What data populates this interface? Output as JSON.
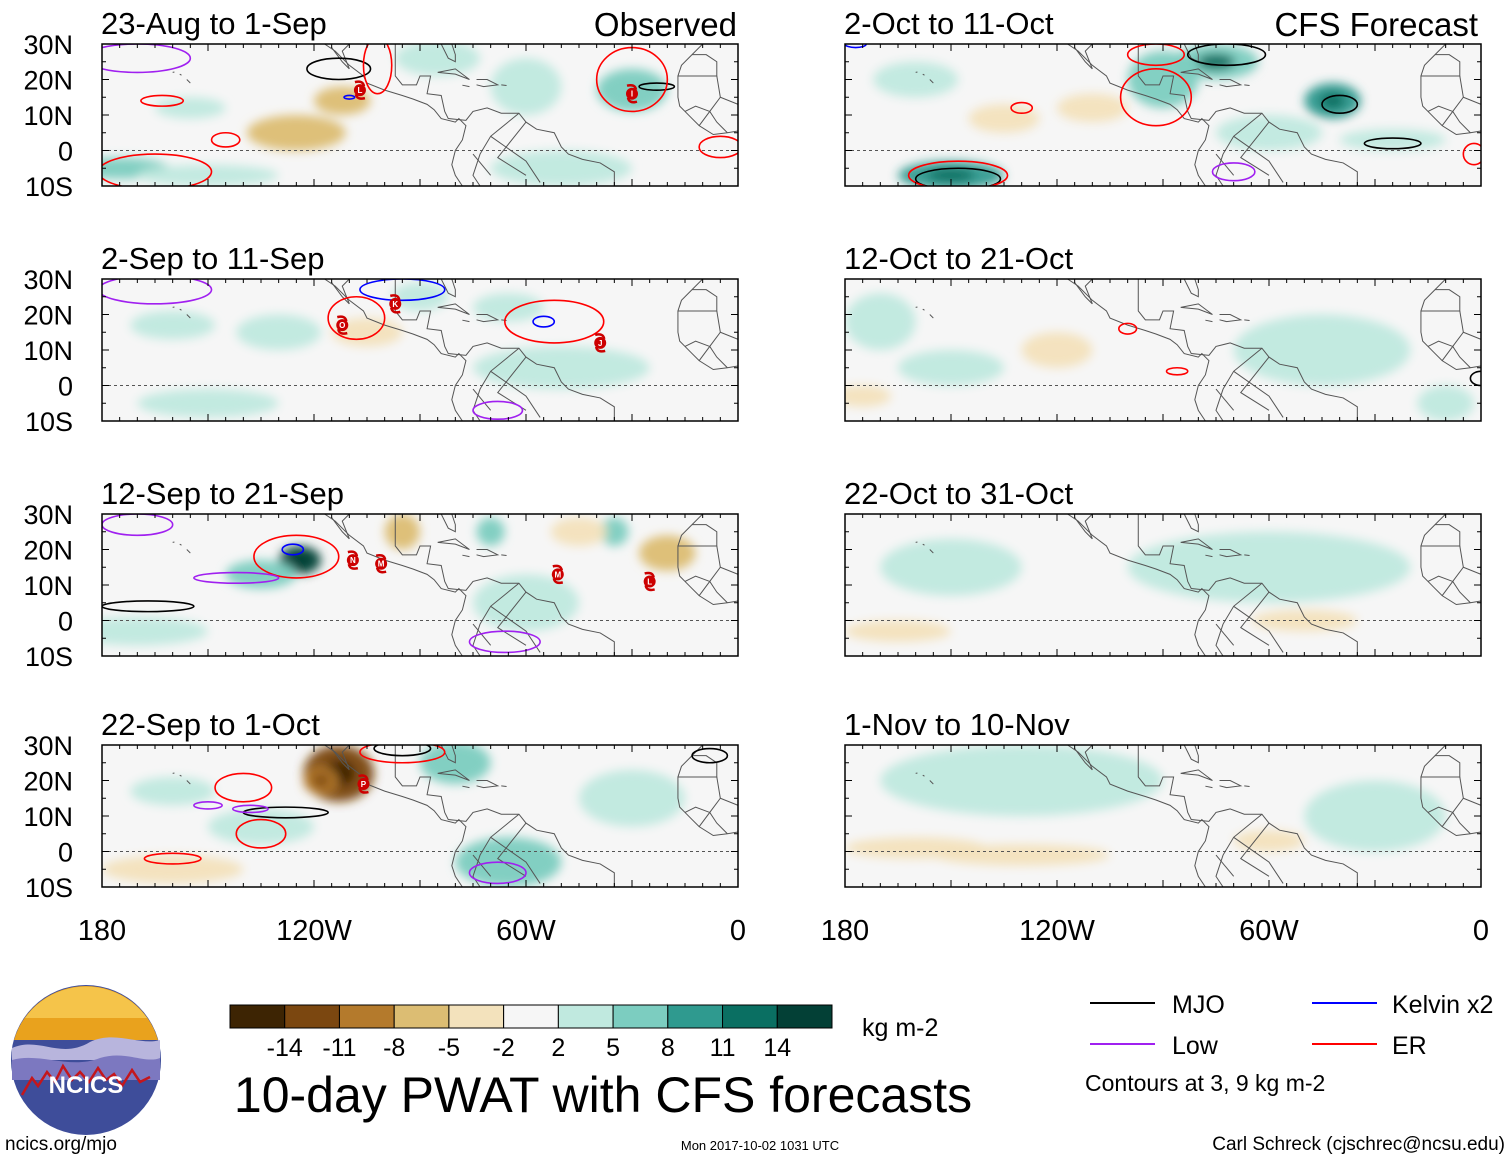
{
  "colors": {
    "mjo": "#000000",
    "kelvin": "#0000ff",
    "low": "#a020f0",
    "er": "#ff0000",
    "equator": "#555555",
    "land_line": "#555555",
    "palette": [
      "#3d2403",
      "#7b4710",
      "#b47a2c",
      "#dcbd73",
      "#f3e2bc",
      "#f6f6f6",
      "#c0e9df",
      "#7ccdc0",
      "#2f9a8f",
      "#0a6f62",
      "#034036"
    ]
  },
  "header": {
    "observed_label": "Observed",
    "forecast_label": "CFS Forecast"
  },
  "axes": {
    "lat_ticks": [
      "30N",
      "20N",
      "10N",
      "0",
      "10S"
    ],
    "lon_ticks": [
      "180",
      "120W",
      "60W",
      "0"
    ]
  },
  "colorbar": {
    "tick_labels": [
      "-14",
      "-11",
      "-8",
      "-5",
      "-2",
      "2",
      "5",
      "8",
      "11",
      "14"
    ],
    "unit": "kg m-2"
  },
  "legend": {
    "mjo": "MJO",
    "low": "Low",
    "kelvin": "Kelvin x2",
    "er": "ER",
    "note": "Contours at 3, 9 kg m-2"
  },
  "title": "10-day PWAT with CFS forecasts",
  "logo": {
    "text": "NCICS"
  },
  "footer": {
    "url": "ncics.org/mjo",
    "timestamp": "Mon 2017-10-02 1031 UTC",
    "credit": "Carl Schreck (cjschrec@ncsu.edu)"
  },
  "chart_data": {
    "type": "heatmap",
    "variable": "PWAT anomaly",
    "unit": "kg m-2",
    "lon_range": [
      -180,
      0
    ],
    "lat_range": [
      -10,
      30
    ],
    "color_levels": [
      -14,
      -11,
      -8,
      -5,
      -2,
      2,
      5,
      8,
      11,
      14
    ],
    "panels": [
      {
        "title": "23-Aug to 1-Sep",
        "column": "observed",
        "blobs": [
          {
            "lon": -175,
            "lat": -5,
            "rl": 14,
            "rt": 3,
            "v": 6
          },
          {
            "lon": -155,
            "lat": 12,
            "rl": 10,
            "rt": 3,
            "v": 4
          },
          {
            "lon": -125,
            "lat": 5,
            "rl": 14,
            "rt": 5,
            "v": -6
          },
          {
            "lon": -112,
            "lat": 14,
            "rl": 8,
            "rt": 4,
            "v": -5
          },
          {
            "lon": -85,
            "lat": 26,
            "rl": 12,
            "rt": 5,
            "v": 5
          },
          {
            "lon": -60,
            "lat": 18,
            "rl": 10,
            "rt": 8,
            "v": 4
          },
          {
            "lon": -30,
            "lat": 17,
            "rl": 10,
            "rt": 6,
            "v": 6
          },
          {
            "lon": -50,
            "lat": -5,
            "rl": 20,
            "rt": 5,
            "v": 3
          },
          {
            "lon": -150,
            "lat": -7,
            "rl": 20,
            "rt": 3,
            "v": 3
          }
        ],
        "contours": [
          {
            "k": "mjo",
            "lon": -113,
            "lat": 23,
            "rl": 9,
            "rt": 3
          },
          {
            "k": "mjo",
            "lon": -23,
            "lat": 18,
            "rl": 5,
            "rt": 1
          },
          {
            "k": "er",
            "lon": -163,
            "lat": 14,
            "rl": 6,
            "rt": 1.5
          },
          {
            "k": "er",
            "lon": -145,
            "lat": 3,
            "rl": 4,
            "rt": 2
          },
          {
            "k": "er",
            "lon": -165,
            "lat": -6,
            "rl": 16,
            "rt": 5
          },
          {
            "k": "er",
            "lon": -102,
            "lat": 24,
            "rl": 4,
            "rt": 8
          },
          {
            "k": "er",
            "lon": -30,
            "lat": 20,
            "rl": 10,
            "rt": 9
          },
          {
            "k": "er",
            "lon": -5,
            "lat": 1,
            "rl": 6,
            "rt": 3
          },
          {
            "k": "low",
            "lon": -170,
            "lat": 26,
            "rl": 15,
            "rt": 4
          },
          {
            "k": "kelvin",
            "lon": -110,
            "lat": 15,
            "rl": 1.5,
            "rt": 0.5
          }
        ],
        "storms": [
          {
            "lon": -107,
            "lat": 17,
            "letter": "L"
          },
          {
            "lon": -30,
            "lat": 16,
            "letter": "I"
          }
        ]
      },
      {
        "title": "2-Sep to 11-Sep",
        "column": "observed",
        "blobs": [
          {
            "lon": -160,
            "lat": 17,
            "rl": 12,
            "rt": 4,
            "v": 4
          },
          {
            "lon": -130,
            "lat": 15,
            "rl": 12,
            "rt": 5,
            "v": 5
          },
          {
            "lon": -65,
            "lat": 22,
            "rl": 10,
            "rt": 4,
            "v": 5
          },
          {
            "lon": -50,
            "lat": 5,
            "rl": 25,
            "rt": 6,
            "v": 3
          },
          {
            "lon": -150,
            "lat": -5,
            "rl": 20,
            "rt": 4,
            "v": 3
          },
          {
            "lon": -105,
            "lat": 15,
            "rl": 10,
            "rt": 4,
            "v": -3
          },
          {
            "lon": -90,
            "lat": 25,
            "rl": 8,
            "rt": 4,
            "v": 4
          }
        ],
        "contours": [
          {
            "k": "er",
            "lon": -108,
            "lat": 19,
            "rl": 8,
            "rt": 6
          },
          {
            "k": "er",
            "lon": -52,
            "lat": 18,
            "rl": 14,
            "rt": 6
          },
          {
            "k": "kelvin",
            "lon": -95,
            "lat": 27,
            "rl": 12,
            "rt": 3
          },
          {
            "k": "kelvin",
            "lon": -55,
            "lat": 18,
            "rl": 3,
            "rt": 1.5
          },
          {
            "k": "low",
            "lon": -165,
            "lat": 27,
            "rl": 16,
            "rt": 4
          },
          {
            "k": "low",
            "lon": -68,
            "lat": -7,
            "rl": 7,
            "rt": 2.5
          }
        ],
        "storms": [
          {
            "lon": -112,
            "lat": 17,
            "letter": "O"
          },
          {
            "lon": -97,
            "lat": 23,
            "letter": "K"
          },
          {
            "lon": -39,
            "lat": 12,
            "letter": "J"
          }
        ]
      },
      {
        "title": "12-Sep to 21-Sep",
        "column": "observed",
        "blobs": [
          {
            "lon": -124,
            "lat": 17,
            "rl": 6,
            "rt": 4,
            "v": 15
          },
          {
            "lon": -135,
            "lat": 13,
            "rl": 10,
            "rt": 4,
            "v": 6
          },
          {
            "lon": -60,
            "lat": 5,
            "rl": 15,
            "rt": 8,
            "v": 5
          },
          {
            "lon": -70,
            "lat": 25,
            "rl": 4,
            "rt": 4,
            "v": 7
          },
          {
            "lon": -35,
            "lat": 25,
            "rl": 4,
            "rt": 4,
            "v": 7
          },
          {
            "lon": -95,
            "lat": 25,
            "rl": 5,
            "rt": 5,
            "v": -6
          },
          {
            "lon": -20,
            "lat": 19,
            "rl": 8,
            "rt": 5,
            "v": -5
          },
          {
            "lon": -170,
            "lat": -3,
            "rl": 20,
            "rt": 4,
            "v": 3
          },
          {
            "lon": -45,
            "lat": 25,
            "rl": 8,
            "rt": 4,
            "v": -3
          }
        ],
        "contours": [
          {
            "k": "er",
            "lon": -125,
            "lat": 18,
            "rl": 12,
            "rt": 6
          },
          {
            "k": "kelvin",
            "lon": -126,
            "lat": 20,
            "rl": 3,
            "rt": 1.5
          },
          {
            "k": "low",
            "lon": -170,
            "lat": 27,
            "rl": 10,
            "rt": 3
          },
          {
            "k": "low",
            "lon": -142,
            "lat": 12,
            "rl": 12,
            "rt": 1.5
          },
          {
            "k": "low",
            "lon": -66,
            "lat": -6,
            "rl": 10,
            "rt": 3
          },
          {
            "k": "mjo",
            "lon": -167,
            "lat": 4,
            "rl": 13,
            "rt": 1.5
          }
        ],
        "storms": [
          {
            "lon": -109,
            "lat": 17,
            "letter": "N"
          },
          {
            "lon": -101,
            "lat": 16,
            "letter": "M"
          },
          {
            "lon": -51,
            "lat": 13,
            "letter": "M"
          },
          {
            "lon": -25,
            "lat": 11,
            "letter": "L"
          }
        ]
      },
      {
        "title": "22-Sep to 1-Oct",
        "column": "observed",
        "blobs": [
          {
            "lon": -113,
            "lat": 22,
            "rl": 10,
            "rt": 8,
            "v": -11
          },
          {
            "lon": -118,
            "lat": 20,
            "rl": 5,
            "rt": 4,
            "v": -8
          },
          {
            "lon": -80,
            "lat": 25,
            "rl": 10,
            "rt": 6,
            "v": 6
          },
          {
            "lon": -65,
            "lat": -3,
            "rl": 15,
            "rt": 7,
            "v": 7
          },
          {
            "lon": -135,
            "lat": 7,
            "rl": 15,
            "rt": 5,
            "v": 5
          },
          {
            "lon": -160,
            "lat": 17,
            "rl": 12,
            "rt": 4,
            "v": 3
          },
          {
            "lon": -30,
            "lat": 15,
            "rl": 15,
            "rt": 8,
            "v": 3
          },
          {
            "lon": -160,
            "lat": -5,
            "rl": 20,
            "rt": 4,
            "v": -3
          }
        ],
        "contours": [
          {
            "k": "er",
            "lon": -140,
            "lat": 18,
            "rl": 8,
            "rt": 4
          },
          {
            "k": "er",
            "lon": -135,
            "lat": 5,
            "rl": 7,
            "rt": 4
          },
          {
            "k": "er",
            "lon": -160,
            "lat": -2,
            "rl": 8,
            "rt": 1.5
          },
          {
            "k": "er",
            "lon": -95,
            "lat": 28,
            "rl": 12,
            "rt": 3
          },
          {
            "k": "mjo",
            "lon": -128,
            "lat": 11,
            "rl": 12,
            "rt": 1.5
          },
          {
            "k": "mjo",
            "lon": -95,
            "lat": 29,
            "rl": 8,
            "rt": 2
          },
          {
            "k": "low",
            "lon": -150,
            "lat": 13,
            "rl": 4,
            "rt": 1
          },
          {
            "k": "low",
            "lon": -138,
            "lat": 12,
            "rl": 5,
            "rt": 1
          },
          {
            "k": "low",
            "lon": -68,
            "lat": -6,
            "rl": 8,
            "rt": 3
          },
          {
            "k": "mjo",
            "lon": -8,
            "lat": 27,
            "rl": 5,
            "rt": 2
          }
        ],
        "storms": [
          {
            "lon": -106,
            "lat": 19,
            "letter": "P"
          }
        ]
      },
      {
        "title": "2-Oct to 11-Oct",
        "column": "forecast",
        "blobs": [
          {
            "lon": -75,
            "lat": 25,
            "rl": 12,
            "rt": 5,
            "v": 8
          },
          {
            "lon": -90,
            "lat": 20,
            "rl": 10,
            "rt": 8,
            "v": 6
          },
          {
            "lon": -42,
            "lat": 14,
            "rl": 8,
            "rt": 5,
            "v": 10
          },
          {
            "lon": -25,
            "lat": 3,
            "rl": 15,
            "rt": 3,
            "v": 5
          },
          {
            "lon": -150,
            "lat": -7,
            "rl": 15,
            "rt": 4,
            "v": 10
          },
          {
            "lon": -160,
            "lat": 20,
            "rl": 12,
            "rt": 5,
            "v": 4
          },
          {
            "lon": -135,
            "lat": 9,
            "rl": 10,
            "rt": 4,
            "v": -3
          },
          {
            "lon": -110,
            "lat": 12,
            "rl": 10,
            "rt": 4,
            "v": -3
          },
          {
            "lon": -60,
            "lat": 5,
            "rl": 15,
            "rt": 5,
            "v": 3
          }
        ],
        "contours": [
          {
            "k": "mjo",
            "lon": -72,
            "lat": 27,
            "rl": 11,
            "rt": 3
          },
          {
            "k": "mjo",
            "lon": -40,
            "lat": 13,
            "rl": 5,
            "rt": 2.5
          },
          {
            "k": "mjo",
            "lon": -148,
            "lat": -8,
            "rl": 12,
            "rt": 3
          },
          {
            "k": "mjo",
            "lon": -25,
            "lat": 2,
            "rl": 8,
            "rt": 1.5
          },
          {
            "k": "er",
            "lon": -92,
            "lat": 15,
            "rl": 10,
            "rt": 8
          },
          {
            "k": "er",
            "lon": -92,
            "lat": 27,
            "rl": 8,
            "rt": 3
          },
          {
            "k": "er",
            "lon": -130,
            "lat": 12,
            "rl": 3,
            "rt": 1.5
          },
          {
            "k": "er",
            "lon": -148,
            "lat": -7,
            "rl": 14,
            "rt": 4
          },
          {
            "k": "er",
            "lon": -2,
            "lat": -1,
            "rl": 3,
            "rt": 3
          },
          {
            "k": "low",
            "lon": -70,
            "lat": -6,
            "rl": 6,
            "rt": 2.5
          },
          {
            "k": "kelvin",
            "lon": -177,
            "lat": 30,
            "rl": 3,
            "rt": 1
          }
        ],
        "storms": []
      },
      {
        "title": "12-Oct to 21-Oct",
        "column": "forecast",
        "blobs": [
          {
            "lon": -170,
            "lat": 18,
            "rl": 10,
            "rt": 8,
            "v": 3
          },
          {
            "lon": -45,
            "lat": 10,
            "rl": 25,
            "rt": 10,
            "v": 3
          },
          {
            "lon": -10,
            "lat": -5,
            "rl": 8,
            "rt": 5,
            "v": 5
          },
          {
            "lon": -150,
            "lat": 5,
            "rl": 15,
            "rt": 5,
            "v": 3
          },
          {
            "lon": -120,
            "lat": 10,
            "rl": 10,
            "rt": 5,
            "v": -3
          },
          {
            "lon": -175,
            "lat": -3,
            "rl": 8,
            "rt": 3,
            "v": -3
          }
        ],
        "contours": [
          {
            "k": "er",
            "lon": -100,
            "lat": 16,
            "rl": 2.5,
            "rt": 1.5
          },
          {
            "k": "er",
            "lon": -86,
            "lat": 4,
            "rl": 3,
            "rt": 1
          },
          {
            "k": "mjo",
            "lon": 0,
            "lat": 2,
            "rl": 3,
            "rt": 2
          }
        ],
        "storms": []
      },
      {
        "title": "22-Oct to 31-Oct",
        "column": "forecast",
        "blobs": [
          {
            "lon": -60,
            "lat": 15,
            "rl": 40,
            "rt": 10,
            "v": 3
          },
          {
            "lon": -150,
            "lat": 15,
            "rl": 20,
            "rt": 8,
            "v": 3
          },
          {
            "lon": -165,
            "lat": -3,
            "rl": 15,
            "rt": 3,
            "v": -3
          },
          {
            "lon": -50,
            "lat": 0,
            "rl": 15,
            "rt": 3,
            "v": -3
          }
        ],
        "contours": [],
        "storms": []
      },
      {
        "title": "1-Nov to 10-Nov",
        "column": "forecast",
        "blobs": [
          {
            "lon": -130,
            "lat": 20,
            "rl": 40,
            "rt": 10,
            "v": 3
          },
          {
            "lon": -160,
            "lat": 1,
            "rl": 20,
            "rt": 3,
            "v": -4
          },
          {
            "lon": -130,
            "lat": -1,
            "rl": 25,
            "rt": 3,
            "v": -3
          },
          {
            "lon": -30,
            "lat": 10,
            "rl": 20,
            "rt": 10,
            "v": 3
          },
          {
            "lon": -60,
            "lat": 3,
            "rl": 10,
            "rt": 3,
            "v": -3
          }
        ],
        "contours": [],
        "storms": []
      }
    ]
  }
}
